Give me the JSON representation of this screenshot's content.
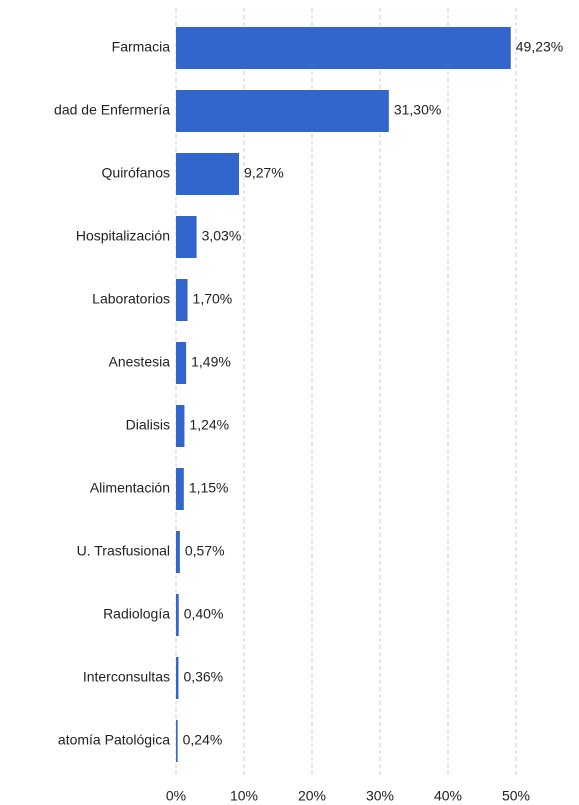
{
  "chart_data": {
    "type": "bar",
    "orientation": "horizontal",
    "categories": [
      "Farmacia",
      "dad de Enfermería",
      "Quirófanos",
      "Hospitalización",
      "Laboratorios",
      "Anestesia",
      "Dialisis",
      "Alimentación",
      "U. Trasfusional",
      "Radiología",
      "Interconsultas",
      "atomía Patológica"
    ],
    "values": [
      49.23,
      31.3,
      9.27,
      3.03,
      1.7,
      1.49,
      1.24,
      1.15,
      0.57,
      0.4,
      0.36,
      0.24
    ],
    "value_labels": [
      "49,23%",
      "31,30%",
      "9,27%",
      "3,03%",
      "1,70%",
      "1,49%",
      "1,24%",
      "1,15%",
      "0,57%",
      "0,40%",
      "0,36%",
      "0,24%"
    ],
    "color": "#3366cc",
    "xlim": [
      0,
      50
    ],
    "xticks": [
      {
        "value": 0,
        "label": "0%"
      },
      {
        "value": 10,
        "label": "10%"
      },
      {
        "value": 20,
        "label": "20%"
      },
      {
        "value": 30,
        "label": "30%"
      },
      {
        "value": 40,
        "label": "40%"
      },
      {
        "value": 50,
        "label": "50%"
      }
    ],
    "grid": true
  }
}
